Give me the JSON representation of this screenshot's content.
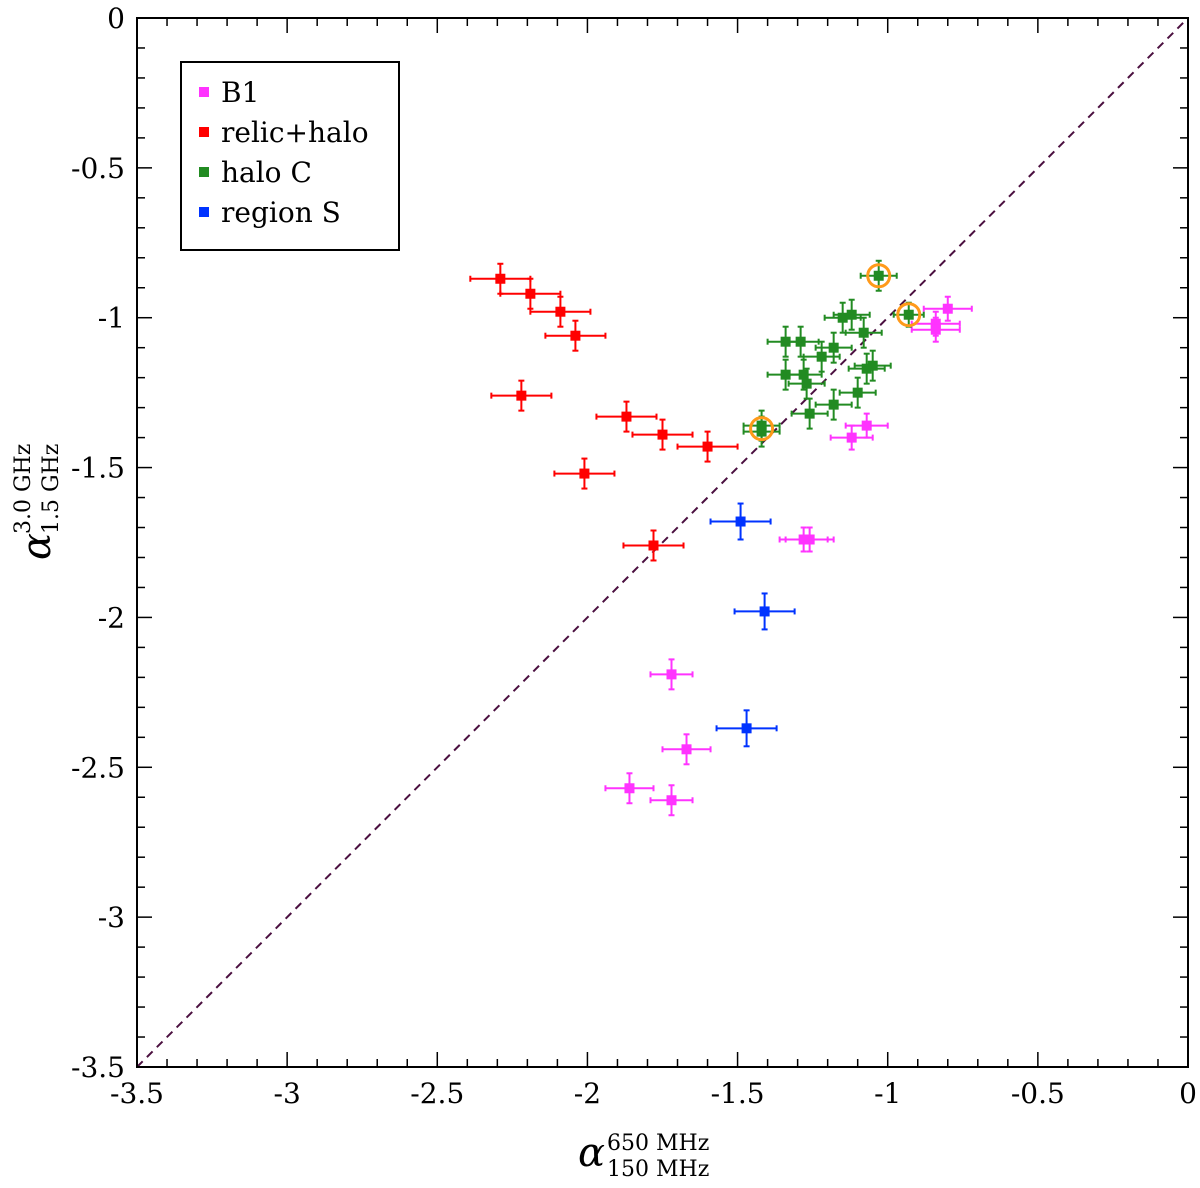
{
  "chart_data": {
    "type": "scatter",
    "title": "",
    "xlabel": {
      "symbol": "α",
      "sup": "650 MHz",
      "sub": "150 MHz"
    },
    "ylabel": {
      "symbol": "α",
      "sup": "3.0 GHz",
      "sub": "1.5 GHz"
    },
    "xlim": [
      -3.5,
      0
    ],
    "ylim": [
      -3.5,
      0
    ],
    "x_ticks": [
      -3.5,
      -3,
      -2.5,
      -2,
      -1.5,
      -1,
      -0.5,
      0
    ],
    "x_tick_labels": [
      "-3.5",
      "-3",
      "-2.5",
      "-2",
      "-1.5",
      "-1",
      "-0.5",
      "0"
    ],
    "y_ticks": [
      -3.5,
      -3,
      -2.5,
      -2,
      -1.5,
      -1,
      -0.5,
      0
    ],
    "y_tick_labels": [
      "-3.5",
      "-3",
      "-2.5",
      "-2",
      "-1.5",
      "-1",
      "-0.5",
      "0"
    ],
    "reference_line": {
      "type": "y=x",
      "style": "dashed",
      "color": "#4b1040"
    },
    "legend_position": "top-left",
    "series": [
      {
        "name": "B1",
        "color": "#ff33ff",
        "points": [
          {
            "x": -0.8,
            "y": -0.97,
            "xerr": 0.08,
            "yerr": 0.04
          },
          {
            "x": -0.84,
            "y": -1.02,
            "xerr": 0.08,
            "yerr": 0.04
          },
          {
            "x": -0.84,
            "y": -1.04,
            "xerr": 0.08,
            "yerr": 0.04
          },
          {
            "x": -1.07,
            "y": -1.36,
            "xerr": 0.07,
            "yerr": 0.04
          },
          {
            "x": -1.12,
            "y": -1.4,
            "xerr": 0.07,
            "yerr": 0.04
          },
          {
            "x": -1.26,
            "y": -1.74,
            "xerr": 0.08,
            "yerr": 0.04
          },
          {
            "x": -1.28,
            "y": -1.74,
            "xerr": 0.08,
            "yerr": 0.04
          },
          {
            "x": -1.72,
            "y": -2.19,
            "xerr": 0.07,
            "yerr": 0.05
          },
          {
            "x": -1.67,
            "y": -2.44,
            "xerr": 0.08,
            "yerr": 0.05
          },
          {
            "x": -1.86,
            "y": -2.57,
            "xerr": 0.08,
            "yerr": 0.05
          },
          {
            "x": -1.72,
            "y": -2.61,
            "xerr": 0.07,
            "yerr": 0.05
          }
        ]
      },
      {
        "name": "relic+halo",
        "color": "#ff0000",
        "points": [
          {
            "x": -2.29,
            "y": -0.87,
            "xerr": 0.1,
            "yerr": 0.05
          },
          {
            "x": -2.19,
            "y": -0.92,
            "xerr": 0.1,
            "yerr": 0.05
          },
          {
            "x": -2.09,
            "y": -0.98,
            "xerr": 0.1,
            "yerr": 0.05
          },
          {
            "x": -2.04,
            "y": -1.06,
            "xerr": 0.1,
            "yerr": 0.05
          },
          {
            "x": -2.22,
            "y": -1.26,
            "xerr": 0.1,
            "yerr": 0.05
          },
          {
            "x": -1.87,
            "y": -1.33,
            "xerr": 0.1,
            "yerr": 0.05
          },
          {
            "x": -1.75,
            "y": -1.39,
            "xerr": 0.1,
            "yerr": 0.05
          },
          {
            "x": -1.6,
            "y": -1.43,
            "xerr": 0.1,
            "yerr": 0.05
          },
          {
            "x": -2.01,
            "y": -1.52,
            "xerr": 0.1,
            "yerr": 0.05
          },
          {
            "x": -1.78,
            "y": -1.76,
            "xerr": 0.1,
            "yerr": 0.05
          }
        ]
      },
      {
        "name": "halo C",
        "color": "#228b22",
        "points": [
          {
            "x": -1.03,
            "y": -0.86,
            "xerr": 0.06,
            "yerr": 0.05
          },
          {
            "x": -0.93,
            "y": -0.99,
            "xerr": 0.05,
            "yerr": 0.04
          },
          {
            "x": -1.12,
            "y": -0.99,
            "xerr": 0.06,
            "yerr": 0.05
          },
          {
            "x": -1.15,
            "y": -1.0,
            "xerr": 0.06,
            "yerr": 0.05
          },
          {
            "x": -1.08,
            "y": -1.05,
            "xerr": 0.06,
            "yerr": 0.05
          },
          {
            "x": -1.34,
            "y": -1.08,
            "xerr": 0.06,
            "yerr": 0.05
          },
          {
            "x": -1.29,
            "y": -1.08,
            "xerr": 0.06,
            "yerr": 0.05
          },
          {
            "x": -1.18,
            "y": -1.1,
            "xerr": 0.06,
            "yerr": 0.05
          },
          {
            "x": -1.22,
            "y": -1.13,
            "xerr": 0.06,
            "yerr": 0.05
          },
          {
            "x": -1.05,
            "y": -1.16,
            "xerr": 0.06,
            "yerr": 0.05
          },
          {
            "x": -1.07,
            "y": -1.17,
            "xerr": 0.06,
            "yerr": 0.05
          },
          {
            "x": -1.34,
            "y": -1.19,
            "xerr": 0.06,
            "yerr": 0.05
          },
          {
            "x": -1.28,
            "y": -1.19,
            "xerr": 0.06,
            "yerr": 0.05
          },
          {
            "x": -1.27,
            "y": -1.22,
            "xerr": 0.06,
            "yerr": 0.05
          },
          {
            "x": -1.1,
            "y": -1.25,
            "xerr": 0.06,
            "yerr": 0.05
          },
          {
            "x": -1.18,
            "y": -1.29,
            "xerr": 0.06,
            "yerr": 0.05
          },
          {
            "x": -1.26,
            "y": -1.32,
            "xerr": 0.06,
            "yerr": 0.05
          },
          {
            "x": -1.42,
            "y": -1.36,
            "xerr": 0.06,
            "yerr": 0.05
          },
          {
            "x": -1.42,
            "y": -1.38,
            "xerr": 0.06,
            "yerr": 0.05
          }
        ]
      },
      {
        "name": "region S",
        "color": "#0033ff",
        "points": [
          {
            "x": -1.49,
            "y": -1.68,
            "xerr": 0.1,
            "yerr": 0.06
          },
          {
            "x": -1.41,
            "y": -1.98,
            "xerr": 0.1,
            "yerr": 0.06
          },
          {
            "x": -1.47,
            "y": -2.37,
            "xerr": 0.1,
            "yerr": 0.06
          }
        ]
      }
    ],
    "highlighted_points": [
      {
        "x": -1.03,
        "y": -0.86,
        "color": "#ff9a1a"
      },
      {
        "x": -0.93,
        "y": -0.99,
        "color": "#ff9a1a"
      },
      {
        "x": -1.42,
        "y": -1.37,
        "color": "#ff9a1a"
      }
    ]
  }
}
